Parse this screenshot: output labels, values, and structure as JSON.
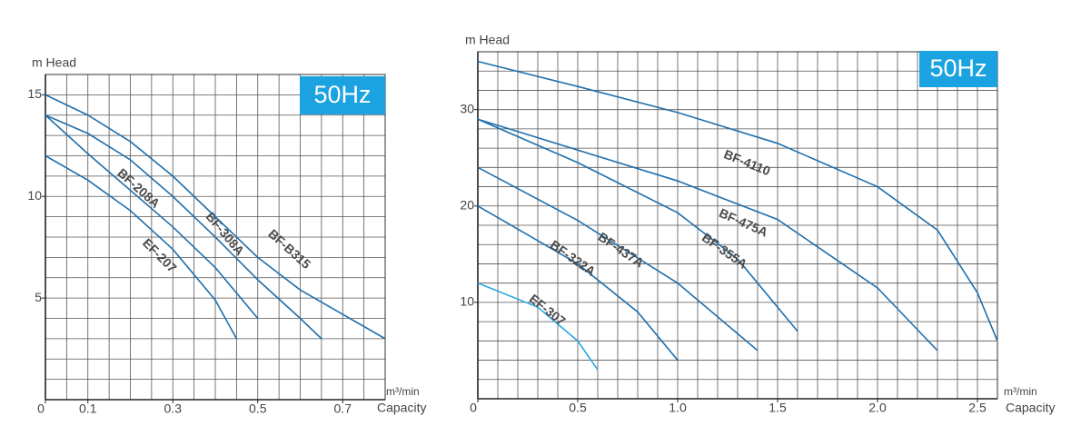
{
  "chart_data": [
    {
      "type": "line",
      "badge": "50Hz",
      "y_label": "m Head",
      "x_unit": "m³/min",
      "x_label": "Capacity",
      "xlim": [
        0,
        0.8
      ],
      "ylim": [
        0,
        16
      ],
      "xticks": [
        0,
        0.1,
        0.3,
        0.5,
        0.7
      ],
      "yticks": [
        5,
        10,
        15
      ],
      "grid": true,
      "xgrid_step": 0.05,
      "ygrid_step": 1,
      "series": [
        {
          "name": "BF-208A",
          "color": "#1f6fad",
          "x": [
            0,
            0.1,
            0.2,
            0.3,
            0.4,
            0.5
          ],
          "values": [
            14,
            12.1,
            10.3,
            8.5,
            6.5,
            4
          ]
        },
        {
          "name": "EF-207",
          "color": "#1f6fad",
          "x": [
            0,
            0.1,
            0.2,
            0.3,
            0.4,
            0.45
          ],
          "values": [
            12,
            10.8,
            9.3,
            7.4,
            4.9,
            3
          ]
        },
        {
          "name": "BF-308A",
          "color": "#1f6fad",
          "x": [
            0,
            0.1,
            0.2,
            0.3,
            0.4,
            0.5,
            0.6,
            0.65
          ],
          "values": [
            14,
            13.1,
            11.8,
            10,
            8,
            5.9,
            4,
            3
          ]
        },
        {
          "name": "BF-B315",
          "color": "#1f6fad",
          "x": [
            0,
            0.1,
            0.2,
            0.3,
            0.4,
            0.5,
            0.6,
            0.7,
            0.8
          ],
          "values": [
            15,
            14,
            12.7,
            11,
            9,
            7,
            5.4,
            4.2,
            3
          ]
        }
      ]
    },
    {
      "type": "line",
      "badge": "50Hz",
      "y_label": "m Head",
      "x_unit": "m³/min",
      "x_label": "Capacity",
      "xlim": [
        0,
        2.6
      ],
      "ylim": [
        0,
        36
      ],
      "xticks": [
        0,
        0.5,
        {
          "value": 1,
          "label": "1.0"
        },
        1.5,
        {
          "value": 2,
          "label": "2.0"
        },
        2.5
      ],
      "yticks": [
        10,
        20,
        30
      ],
      "grid": true,
      "xgrid_step": 0.1,
      "ygrid_step": 2,
      "series": [
        {
          "name": "BF-4110",
          "color": "#1f6fad",
          "x": [
            0,
            0.5,
            1.0,
            1.5,
            2.0,
            2.3,
            2.5,
            2.6
          ],
          "values": [
            35,
            32.4,
            29.7,
            26.5,
            22,
            17.5,
            11,
            6
          ]
        },
        {
          "name": "BF-475A",
          "color": "#1f6fad",
          "x": [
            0,
            0.5,
            1.0,
            1.5,
            2.0,
            2.3
          ],
          "values": [
            29,
            25.8,
            22.6,
            18.6,
            11.5,
            5
          ]
        },
        {
          "name": "BF-355A",
          "color": "#1f6fad",
          "x": [
            0,
            0.5,
            1.0,
            1.3,
            1.6
          ],
          "values": [
            29,
            24.5,
            19.3,
            14.5,
            7
          ]
        },
        {
          "name": "BF-437A",
          "color": "#1f6fad",
          "x": [
            0,
            0.5,
            1.0,
            1.4
          ],
          "values": [
            24,
            18.5,
            12,
            5
          ]
        },
        {
          "name": "BF-322A",
          "color": "#1f6fad",
          "x": [
            0,
            0.5,
            0.8,
            1.0
          ],
          "values": [
            20,
            14,
            9,
            4
          ]
        },
        {
          "name": "EF-307",
          "color": "#2aa7e0",
          "x": [
            0,
            0.3,
            0.5,
            0.6
          ],
          "values": [
            12,
            9.5,
            6,
            3
          ]
        }
      ]
    }
  ]
}
